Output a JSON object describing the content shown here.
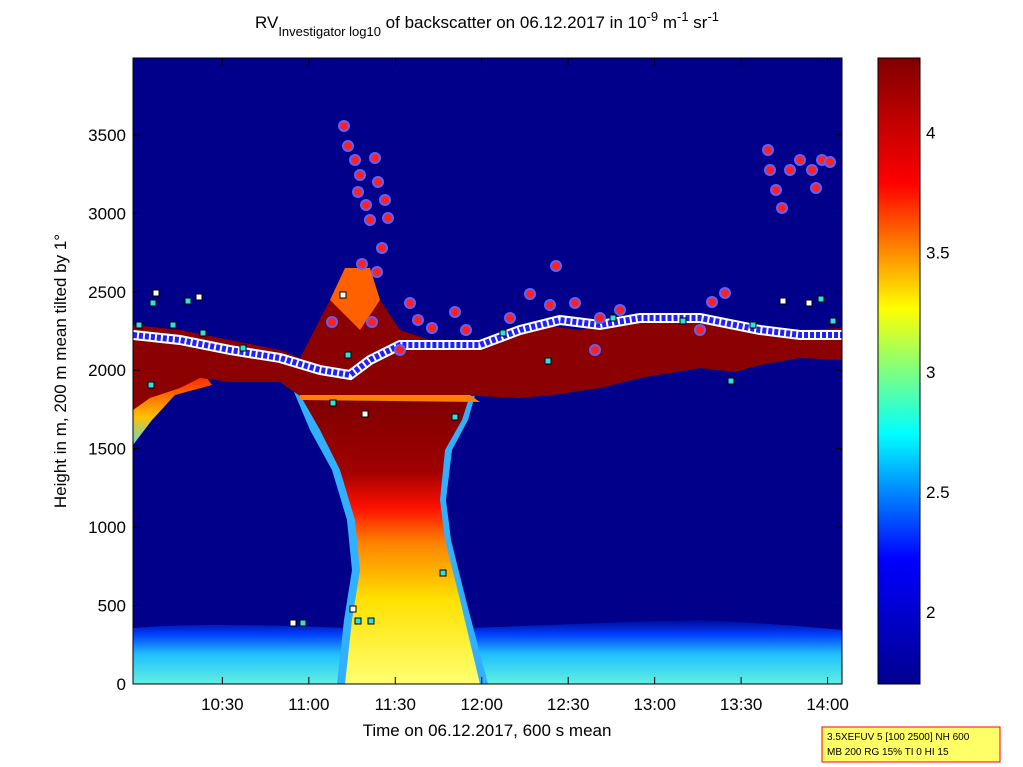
{
  "chart_data": {
    "type": "heatmap",
    "title": [
      "RV",
      "Investigator log",
      "10",
      " of backscatter on 06.12.2017 in 10",
      "-9",
      " m",
      "-1",
      " sr",
      "-1"
    ],
    "title_shift": [
      "none",
      "sub",
      "sub",
      "none",
      "super",
      "none",
      "super",
      "none",
      "super"
    ],
    "x_label": "Time on 06.12.2017, 600 s mean",
    "y_label": "Height in m, 200 m mean tilted by 1°",
    "xlim": [
      599,
      845
    ],
    "xticks": [
      {
        "value": 630,
        "label": "10:30"
      },
      {
        "value": 660,
        "label": "11:00"
      },
      {
        "value": 690,
        "label": "11:30"
      },
      {
        "value": 720,
        "label": "12:00"
      },
      {
        "value": 750,
        "label": "12:30"
      },
      {
        "value": 780,
        "label": "13:00"
      },
      {
        "value": 810,
        "label": "13:30"
      },
      {
        "value": 840,
        "label": "14:00"
      }
    ],
    "ylim": [
      0,
      3990
    ],
    "yticks": [
      0,
      500,
      1000,
      1500,
      2000,
      2500,
      3000,
      3500
    ],
    "colorbar": {
      "clim": [
        1.7,
        4.31
      ],
      "ticks": [
        2,
        2.5,
        3,
        3.5,
        4
      ],
      "colormap": [
        "#00008f",
        "#0000ff",
        "#00ffff",
        "#ffff00",
        "#ff0000",
        "#800000"
      ]
    },
    "annotation": [
      "3.5XEFUV 5 [100 2500] NH 600",
      "MB 200 RG 15% TI 0 HI 15"
    ]
  }
}
